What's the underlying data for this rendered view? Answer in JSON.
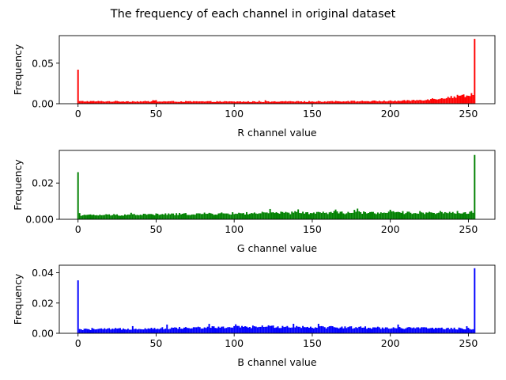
{
  "figure_title": "The frequency of each channel in original dataset",
  "chart_data": [
    {
      "type": "bar",
      "channel": "R",
      "color": "#ff0000",
      "xlabel": "R channel value",
      "ylabel": "Frequency",
      "xlim": [
        -12,
        267
      ],
      "ylim": [
        0,
        0.084
      ],
      "xticks": [
        0,
        50,
        100,
        150,
        200,
        250
      ],
      "yticks": [
        0,
        0.05
      ],
      "ytick_labels": [
        "0.00",
        "0.05"
      ],
      "spikes": [
        {
          "x": 0,
          "y": 0.042
        },
        {
          "x": 254,
          "y": 0.08
        }
      ],
      "baseline": {
        "start": 0.003,
        "mid": 0.0025,
        "end": 0.004
      },
      "tail": {
        "from": 200,
        "peak": 0.012
      }
    },
    {
      "type": "bar",
      "channel": "G",
      "color": "#008000",
      "xlabel": "G channel value",
      "ylabel": "Frequency",
      "xlim": [
        -12,
        267
      ],
      "ylim": [
        0,
        0.038
      ],
      "xticks": [
        0,
        50,
        100,
        150,
        200,
        250
      ],
      "yticks": [
        0,
        0.02
      ],
      "ytick_labels": [
        "0.000",
        "0.02"
      ],
      "spikes": [
        {
          "x": 0,
          "y": 0.026
        },
        {
          "x": 254,
          "y": 0.0355
        }
      ],
      "baseline": {
        "start": 0.0022,
        "mid": 0.0035,
        "end": 0.0038
      },
      "tail": {
        "from": 250,
        "peak": 0.004
      }
    },
    {
      "type": "bar",
      "channel": "B",
      "color": "#0000ff",
      "xlabel": "B channel value",
      "ylabel": "Frequency",
      "xlim": [
        -12,
        267
      ],
      "ylim": [
        0,
        0.045
      ],
      "xticks": [
        0,
        50,
        100,
        150,
        200,
        250
      ],
      "yticks": [
        0,
        0.02,
        0.04
      ],
      "ytick_labels": [
        "0.00",
        "0.02",
        "0.04"
      ],
      "spikes": [
        {
          "x": 0,
          "y": 0.035
        },
        {
          "x": 254,
          "y": 0.043
        }
      ],
      "baseline": {
        "start": 0.0025,
        "mid": 0.0045,
        "end": 0.003
      },
      "tail": {
        "from": 250,
        "peak": 0.003
      }
    }
  ]
}
